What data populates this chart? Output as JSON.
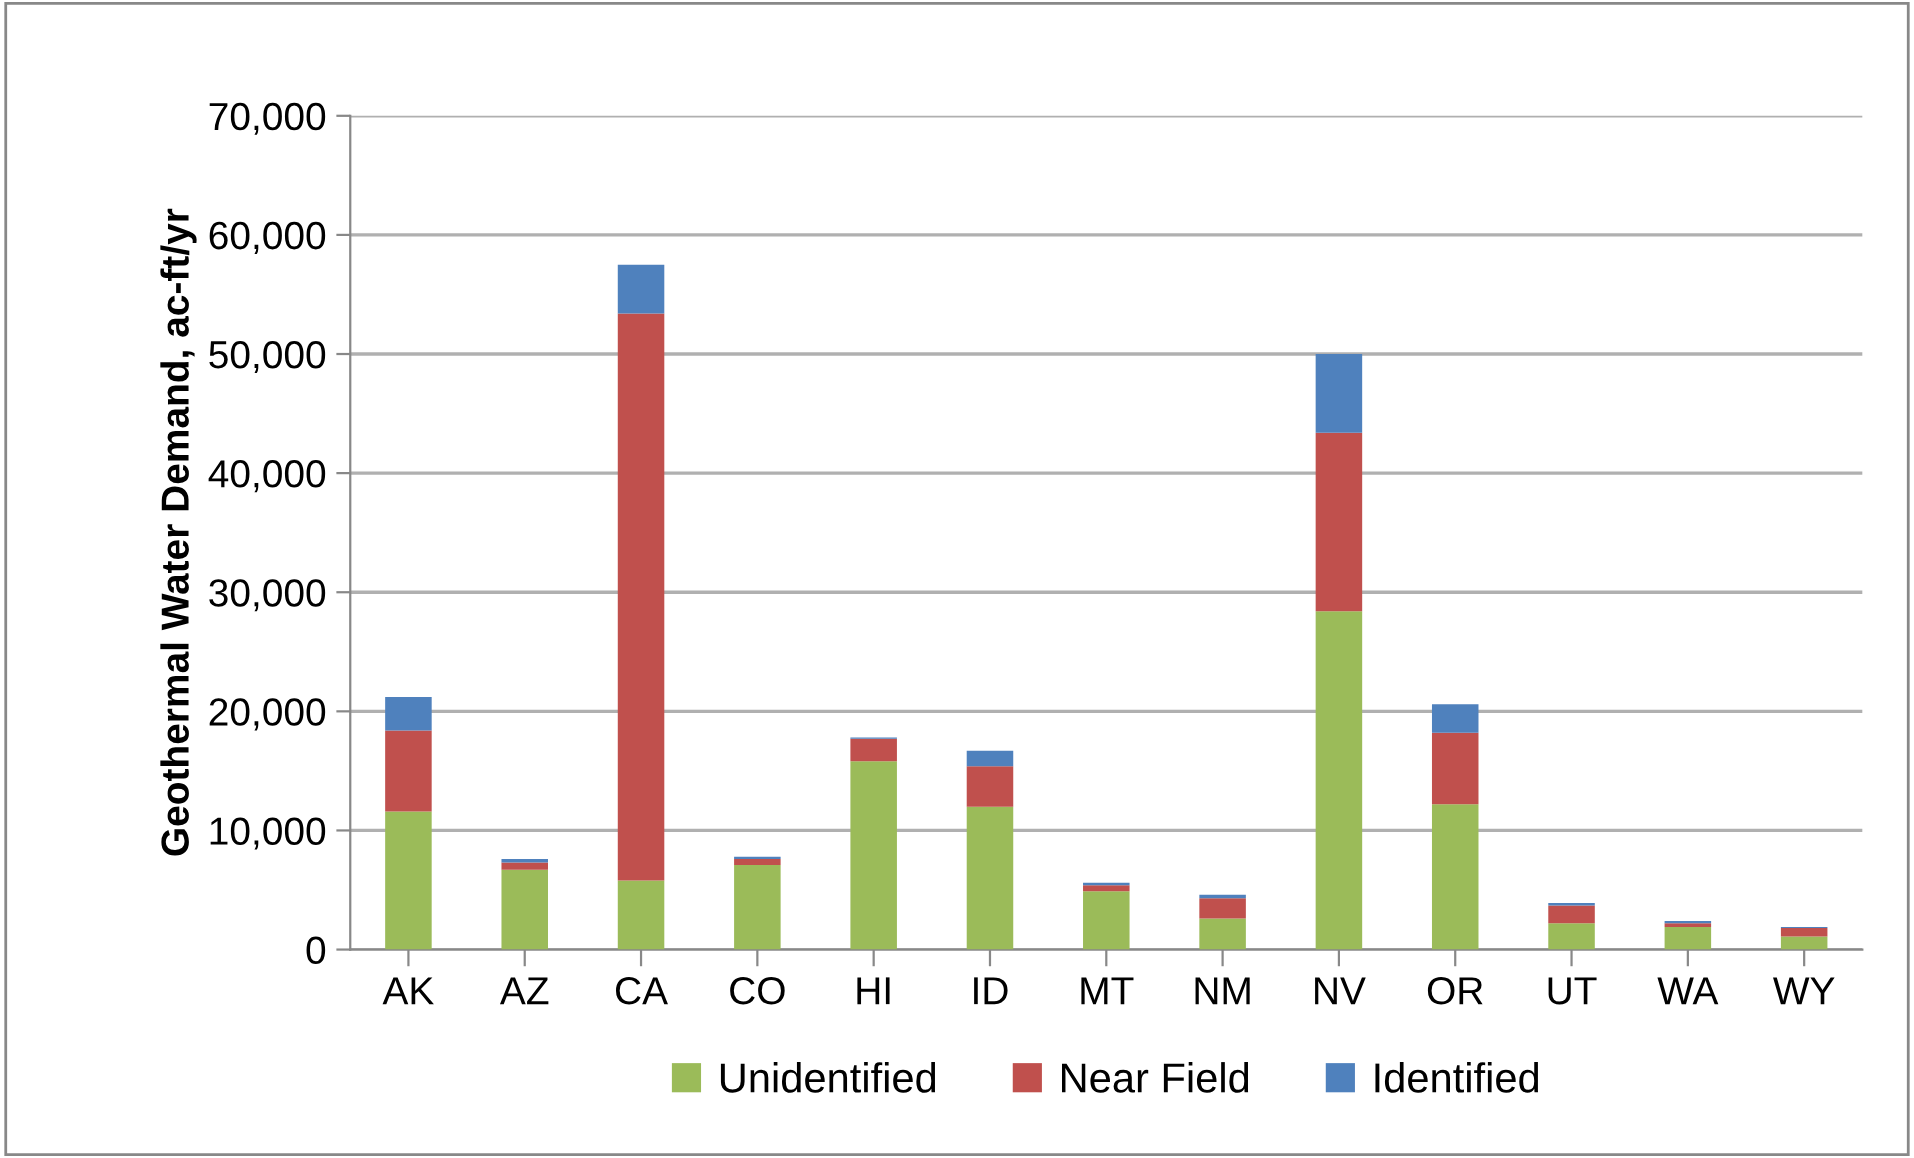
{
  "chart_data": {
    "type": "bar",
    "stacked": true,
    "ylabel": "Geothermal Water Demand, ac-ft/yr",
    "categories": [
      "AK",
      "AZ",
      "CA",
      "CO",
      "HI",
      "ID",
      "MT",
      "NM",
      "NV",
      "OR",
      "UT",
      "WA",
      "WY"
    ],
    "series": [
      {
        "name": "Unidentified",
        "color": "#9bbb59",
        "values": [
          11600,
          6700,
          5800,
          7100,
          15800,
          12000,
          4900,
          2600,
          28400,
          12200,
          2200,
          1900,
          1100
        ]
      },
      {
        "name": "Near Field",
        "color": "#c0504d",
        "values": [
          6800,
          600,
          47600,
          500,
          1900,
          3400,
          500,
          1700,
          15000,
          6000,
          1500,
          300,
          700
        ]
      },
      {
        "name": "Identified",
        "color": "#4f81bd",
        "values": [
          2800,
          300,
          4100,
          200,
          100,
          1300,
          200,
          300,
          6600,
          2400,
          200,
          200,
          100
        ]
      }
    ],
    "ylim": [
      0,
      70000
    ],
    "yticks": [
      0,
      {
        "value": 10000,
        "label": "10,000"
      },
      {
        "value": 20000,
        "label": "20,000"
      },
      {
        "value": 30000,
        "label": "30,000"
      },
      {
        "value": 40000,
        "label": "40,000"
      },
      {
        "value": 50000,
        "label": "50,000"
      },
      {
        "value": 60000,
        "label": "60,000"
      },
      {
        "value": 70000,
        "label": "70,000"
      }
    ],
    "grid": "y",
    "legend": "bottom"
  }
}
